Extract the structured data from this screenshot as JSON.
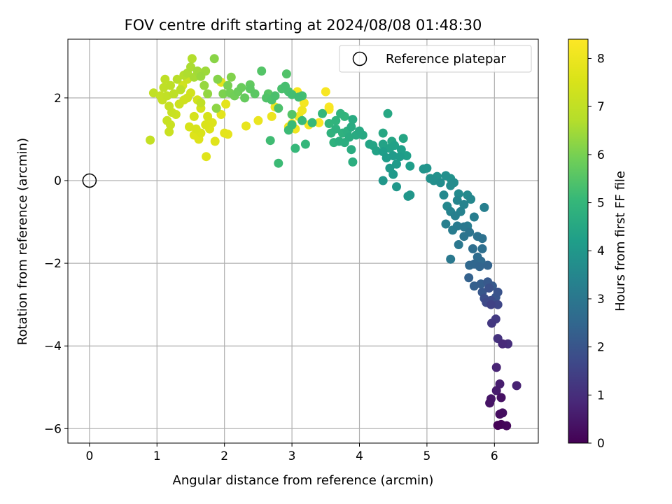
{
  "chart_data": {
    "type": "scatter",
    "title": "FOV centre drift starting at 2024/08/08 01:48:30",
    "xlabel": "Angular distance from reference (arcmin)",
    "ylabel": "Rotation from reference (arcmin)",
    "xlim": [
      -0.32,
      6.65
    ],
    "ylim": [
      -6.35,
      3.42
    ],
    "x_ticks": [
      0,
      1,
      2,
      3,
      4,
      5,
      6
    ],
    "x_tick_labels": [
      "0",
      "1",
      "2",
      "3",
      "4",
      "5",
      "6"
    ],
    "y_ticks": [
      -6,
      -4,
      -2,
      0,
      2
    ],
    "y_tick_labels": [
      "−6",
      "−4",
      "−2",
      "0",
      "2"
    ],
    "grid": true,
    "legend": {
      "placement": "top-right",
      "entries": [
        {
          "label": "Reference platepar",
          "marker": "open-circle"
        }
      ]
    },
    "reference_point": {
      "x": 0,
      "y": 0
    },
    "colorbar": {
      "label": "Hours from first FF file",
      "range": [
        0,
        8.4
      ],
      "ticks": [
        0,
        1,
        2,
        3,
        4,
        5,
        6,
        7,
        8
      ],
      "tick_labels": [
        "0",
        "1",
        "2",
        "3",
        "4",
        "5",
        "6",
        "7",
        "8"
      ],
      "colormap": "viridis"
    },
    "point_data_columns": [
      "x_arcmin",
      "y_arcmin",
      "hours"
    ],
    "points": [
      [
        6.05,
        -5.92,
        0.05
      ],
      [
        6.1,
        -5.9,
        0.1
      ],
      [
        6.18,
        -5.93,
        0.15
      ],
      [
        6.08,
        -5.65,
        0.25
      ],
      [
        6.12,
        -5.62,
        0.3
      ],
      [
        6.1,
        -5.25,
        0.35
      ],
      [
        5.93,
        -5.38,
        0.4
      ],
      [
        5.95,
        -5.28,
        0.45
      ],
      [
        6.03,
        -5.08,
        0.55
      ],
      [
        6.08,
        -4.92,
        0.6
      ],
      [
        6.33,
        -4.96,
        0.7
      ],
      [
        6.03,
        -4.52,
        0.75
      ],
      [
        6.12,
        -3.95,
        0.9
      ],
      [
        6.2,
        -3.95,
        1.0
      ],
      [
        6.05,
        -3.82,
        1.1
      ],
      [
        5.96,
        -3.45,
        1.25
      ],
      [
        6.02,
        -3.35,
        1.3
      ],
      [
        5.95,
        -3.0,
        1.5
      ],
      [
        6.05,
        -3.0,
        1.6
      ],
      [
        5.88,
        -2.95,
        1.7
      ],
      [
        5.95,
        -2.9,
        1.75
      ],
      [
        5.85,
        -2.85,
        1.85
      ],
      [
        5.92,
        -2.6,
        1.9
      ],
      [
        6.05,
        -2.7,
        1.95
      ],
      [
        6.02,
        -2.82,
        2.0
      ],
      [
        5.82,
        -2.7,
        2.05
      ],
      [
        5.9,
        -2.45,
        2.1
      ],
      [
        5.97,
        -2.55,
        2.15
      ],
      [
        5.8,
        -2.5,
        2.25
      ],
      [
        5.7,
        -2.55,
        2.3
      ],
      [
        5.62,
        -2.35,
        2.35
      ],
      [
        5.9,
        -2.05,
        2.4
      ],
      [
        5.78,
        -2.08,
        2.45
      ],
      [
        5.7,
        -2.02,
        2.5
      ],
      [
        5.63,
        -2.05,
        2.55
      ],
      [
        5.8,
        -1.95,
        2.6
      ],
      [
        5.75,
        -1.85,
        2.65
      ],
      [
        5.68,
        -1.65,
        2.7
      ],
      [
        5.82,
        -1.65,
        2.75
      ],
      [
        5.82,
        -1.4,
        2.8
      ],
      [
        5.75,
        -1.35,
        2.85
      ],
      [
        5.63,
        -1.25,
        2.9
      ],
      [
        5.55,
        -1.35,
        2.95
      ],
      [
        5.47,
        -1.55,
        3.0
      ],
      [
        5.35,
        -1.9,
        3.05
      ],
      [
        5.55,
        -1.12,
        3.05
      ],
      [
        5.45,
        -1.1,
        3.1
      ],
      [
        5.6,
        -1.1,
        3.15
      ],
      [
        5.38,
        -1.2,
        3.15
      ],
      [
        5.7,
        -0.88,
        3.2
      ],
      [
        5.85,
        -0.65,
        3.25
      ],
      [
        5.28,
        -1.05,
        3.25
      ],
      [
        5.42,
        -0.85,
        3.3
      ],
      [
        5.5,
        -0.75,
        3.35
      ],
      [
        5.55,
        -0.58,
        3.4
      ],
      [
        5.35,
        -0.75,
        3.4
      ],
      [
        5.45,
        -0.48,
        3.45
      ],
      [
        5.3,
        -0.62,
        3.5
      ],
      [
        5.65,
        -0.45,
        3.5
      ],
      [
        5.25,
        -0.35,
        3.55
      ],
      [
        5.47,
        -0.32,
        3.6
      ],
      [
        5.6,
        -0.35,
        3.6
      ],
      [
        5.35,
        -0.12,
        3.65
      ],
      [
        5.2,
        -0.05,
        3.7
      ],
      [
        5.4,
        -0.05,
        3.7
      ],
      [
        5.1,
        0.0,
        3.75
      ],
      [
        5.28,
        0.12,
        3.75
      ],
      [
        5.15,
        0.1,
        3.8
      ],
      [
        5.05,
        0.05,
        3.8
      ],
      [
        5.35,
        0.05,
        3.85
      ],
      [
        5.0,
        0.3,
        3.9
      ],
      [
        4.95,
        0.28,
        3.9
      ],
      [
        4.72,
        -0.38,
        3.95
      ],
      [
        4.75,
        -0.35,
        3.95
      ],
      [
        4.55,
        -0.15,
        4.0
      ],
      [
        4.35,
        0.0,
        4.0
      ],
      [
        4.5,
        0.15,
        4.05
      ],
      [
        4.45,
        0.3,
        4.05
      ],
      [
        4.55,
        0.4,
        4.1
      ],
      [
        4.5,
        0.6,
        4.1
      ],
      [
        4.6,
        0.58,
        4.15
      ],
      [
        4.4,
        0.55,
        4.15
      ],
      [
        4.35,
        0.7,
        4.2
      ],
      [
        4.75,
        0.35,
        4.2
      ],
      [
        4.7,
        0.6,
        4.25
      ],
      [
        4.62,
        0.75,
        4.25
      ],
      [
        4.52,
        0.85,
        4.3
      ],
      [
        4.45,
        0.78,
        4.3
      ],
      [
        4.35,
        0.88,
        4.35
      ],
      [
        4.25,
        0.72,
        4.35
      ],
      [
        4.2,
        0.85,
        4.4
      ],
      [
        4.15,
        0.88,
        4.4
      ],
      [
        4.65,
        1.02,
        4.45
      ],
      [
        4.48,
        0.95,
        4.45
      ],
      [
        4.35,
        1.15,
        4.5
      ],
      [
        4.42,
        1.62,
        4.5
      ],
      [
        4.05,
        1.1,
        4.55
      ],
      [
        4.0,
        1.2,
        4.55
      ],
      [
        3.9,
        1.48,
        4.6
      ],
      [
        3.88,
        1.3,
        4.6
      ],
      [
        3.95,
        1.1,
        4.6
      ],
      [
        3.85,
        1.05,
        4.65
      ],
      [
        3.88,
        0.75,
        4.65
      ],
      [
        3.9,
        0.45,
        4.7
      ],
      [
        3.78,
        0.92,
        4.7
      ],
      [
        3.7,
        0.95,
        4.75
      ],
      [
        3.82,
        1.2,
        4.75
      ],
      [
        3.75,
        1.15,
        4.8
      ],
      [
        3.65,
        1.25,
        4.8
      ],
      [
        3.58,
        1.15,
        4.85
      ],
      [
        3.62,
        0.92,
        4.85
      ],
      [
        3.65,
        1.45,
        4.9
      ],
      [
        3.72,
        1.62,
        4.9
      ],
      [
        3.78,
        1.55,
        4.95
      ],
      [
        3.55,
        1.38,
        4.95
      ],
      [
        3.45,
        1.62,
        5.0
      ],
      [
        3.2,
        0.88,
        5.0
      ],
      [
        3.05,
        0.78,
        5.05
      ],
      [
        3.3,
        1.4,
        5.05
      ],
      [
        3.15,
        1.45,
        5.1
      ],
      [
        3.0,
        1.35,
        5.1
      ],
      [
        2.95,
        1.22,
        5.15
      ],
      [
        2.8,
        0.42,
        5.15
      ],
      [
        2.68,
        0.97,
        5.2
      ],
      [
        3.1,
        2.02,
        5.2
      ],
      [
        3.15,
        2.05,
        5.25
      ],
      [
        3.0,
        2.08,
        5.25
      ],
      [
        2.95,
        2.15,
        5.3
      ],
      [
        2.9,
        2.28,
        5.3
      ],
      [
        2.85,
        2.22,
        5.35
      ],
      [
        2.75,
        2.05,
        5.35
      ],
      [
        2.7,
        1.95,
        5.4
      ],
      [
        2.8,
        1.75,
        5.4
      ],
      [
        2.62,
        2.0,
        5.45
      ],
      [
        2.92,
        2.58,
        5.45
      ],
      [
        3.0,
        1.6,
        5.5
      ],
      [
        2.55,
        2.65,
        5.5
      ],
      [
        2.65,
        2.1,
        5.55
      ],
      [
        2.45,
        2.1,
        5.6
      ],
      [
        2.38,
        2.22,
        5.65
      ],
      [
        2.38,
        2.32,
        5.7
      ],
      [
        2.3,
        2.0,
        5.75
      ],
      [
        2.25,
        2.25,
        5.8
      ],
      [
        2.2,
        2.15,
        5.85
      ],
      [
        2.15,
        2.05,
        5.9
      ],
      [
        2.08,
        2.12,
        5.95
      ],
      [
        2.05,
        2.3,
        6.0
      ],
      [
        1.98,
        2.1,
        6.05
      ],
      [
        2.1,
        2.5,
        6.1
      ],
      [
        1.9,
        2.45,
        6.15
      ],
      [
        1.85,
        2.95,
        6.2
      ],
      [
        1.88,
        1.75,
        6.25
      ],
      [
        1.75,
        2.1,
        6.3
      ],
      [
        1.7,
        2.3,
        6.35
      ],
      [
        1.65,
        2.52,
        6.4
      ],
      [
        1.72,
        2.65,
        6.45
      ],
      [
        1.6,
        2.65,
        6.5
      ],
      [
        1.55,
        2.5,
        6.55
      ],
      [
        1.5,
        2.75,
        6.6
      ],
      [
        1.45,
        2.6,
        6.65
      ],
      [
        1.52,
        2.95,
        6.7
      ],
      [
        1.4,
        2.55,
        6.75
      ],
      [
        1.3,
        2.45,
        6.8
      ],
      [
        1.35,
        2.2,
        6.85
      ],
      [
        1.25,
        2.1,
        6.9
      ],
      [
        1.2,
        2.3,
        6.9
      ],
      [
        1.12,
        2.45,
        6.95
      ],
      [
        1.1,
        2.25,
        6.95
      ],
      [
        1.15,
        2.05,
        7.0
      ],
      [
        0.95,
        2.12,
        7.0
      ],
      [
        0.9,
        0.98,
        7.05
      ],
      [
        1.05,
        2.05,
        7.05
      ],
      [
        1.08,
        1.95,
        7.1
      ],
      [
        1.18,
        1.8,
        7.1
      ],
      [
        1.22,
        1.65,
        7.15
      ],
      [
        1.15,
        1.45,
        7.15
      ],
      [
        1.2,
        1.35,
        7.2
      ],
      [
        1.18,
        1.18,
        7.2
      ],
      [
        1.28,
        1.6,
        7.25
      ],
      [
        1.33,
        1.85,
        7.25
      ],
      [
        1.4,
        1.95,
        7.3
      ],
      [
        1.45,
        2.0,
        7.3
      ],
      [
        1.5,
        2.12,
        7.35
      ],
      [
        1.38,
        2.3,
        7.35
      ],
      [
        1.6,
        1.95,
        7.4
      ],
      [
        1.65,
        1.75,
        7.4
      ],
      [
        1.75,
        1.55,
        7.45
      ],
      [
        1.55,
        1.55,
        7.45
      ],
      [
        1.48,
        1.3,
        7.5
      ],
      [
        1.58,
        1.25,
        7.5
      ],
      [
        1.65,
        1.15,
        7.55
      ],
      [
        1.72,
        1.35,
        7.55
      ],
      [
        1.78,
        1.25,
        7.6
      ],
      [
        1.82,
        1.4,
        7.6
      ],
      [
        1.55,
        1.1,
        7.65
      ],
      [
        1.62,
        1.0,
        7.65
      ],
      [
        1.73,
        0.58,
        7.7
      ],
      [
        1.86,
        0.95,
        7.7
      ],
      [
        1.95,
        1.6,
        7.75
      ],
      [
        2.02,
        1.85,
        7.8
      ],
      [
        2.0,
        1.15,
        7.8
      ],
      [
        2.05,
        1.12,
        7.85
      ],
      [
        2.32,
        1.32,
        7.9
      ],
      [
        2.5,
        1.45,
        7.95
      ],
      [
        2.7,
        1.55,
        8.0
      ],
      [
        2.95,
        1.3,
        8.05
      ],
      [
        3.05,
        1.25,
        8.05
      ],
      [
        3.1,
        1.55,
        8.1
      ],
      [
        3.15,
        1.7,
        8.1
      ],
      [
        2.75,
        1.78,
        8.1
      ],
      [
        3.25,
        1.35,
        8.15
      ],
      [
        3.0,
        1.38,
        8.15
      ],
      [
        3.18,
        1.88,
        8.2
      ],
      [
        3.08,
        2.15,
        8.2
      ],
      [
        3.5,
        2.15,
        8.25
      ],
      [
        3.55,
        1.72,
        8.25
      ],
      [
        3.55,
        1.78,
        8.3
      ],
      [
        3.4,
        1.4,
        8.3
      ],
      [
        1.95,
        2.38,
        7.75
      ],
      [
        1.65,
        1.88,
        7.0
      ],
      [
        1.45,
        2.45,
        7.25
      ]
    ]
  }
}
